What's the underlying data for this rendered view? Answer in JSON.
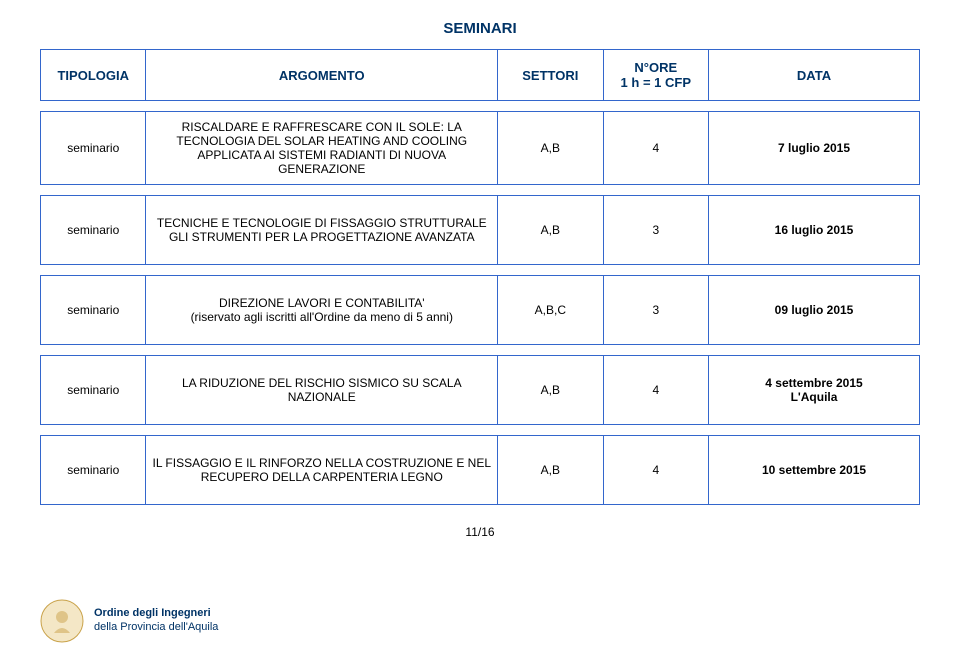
{
  "page_title": "SEMINARI",
  "header": {
    "tipologia": "TIPOLOGIA",
    "argomento": "ARGOMENTO",
    "settori": "SETTORI",
    "ore": "N°ORE\n1 h = 1 CFP",
    "data": "DATA"
  },
  "rows": [
    {
      "tipologia": "seminario",
      "argomento": "RISCALDARE E RAFFRESCARE CON IL SOLE: LA TECNOLOGIA DEL SOLAR HEATING AND COOLING APPLICATA AI SISTEMI RADIANTI DI NUOVA GENERAZIONE",
      "settori": "A,B",
      "ore": "4",
      "data": "7 luglio 2015"
    },
    {
      "tipologia": "seminario",
      "argomento": "TECNICHE E TECNOLOGIE DI FISSAGGIO STRUTTURALE GLI STRUMENTI PER LA PROGETTAZIONE AVANZATA",
      "settori": "A,B",
      "ore": "3",
      "data": "16 luglio 2015"
    },
    {
      "tipologia": "seminario",
      "argomento": "DIREZIONE LAVORI E CONTABILITA'\n(riservato agli iscritti all'Ordine da meno di 5 anni)",
      "settori": "A,B,C",
      "ore": "3",
      "data": "09 luglio 2015"
    },
    {
      "tipologia": "seminario",
      "argomento": "LA RIDUZIONE DEL RISCHIO SISMICO SU SCALA NAZIONALE",
      "settori": "A,B",
      "ore": "4",
      "data": "4 settembre 2015\nL'Aquila"
    },
    {
      "tipologia": "seminario",
      "argomento": "IL FISSAGGIO E IL RINFORZO NELLA COSTRUZIONE E NEL RECUPERO DELLA CARPENTERIA LEGNO",
      "settori": "A,B",
      "ore": "4",
      "data": "10 settembre 2015"
    }
  ],
  "footer": {
    "line1": "Ordine degli Ingegneri",
    "line2": "della Provincia dell'Aquila"
  },
  "page_number": "11/16",
  "colors": {
    "border": "#3366cc",
    "heading": "#003366",
    "text": "#000000",
    "bg": "#ffffff"
  }
}
